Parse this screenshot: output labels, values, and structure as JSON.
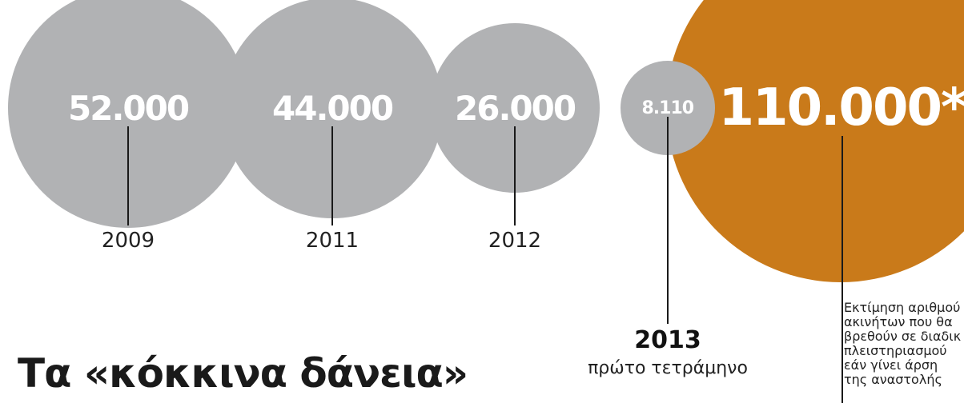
{
  "chart_data": {
    "type": "bubble",
    "title": "Τα «κόκκινα δάνεια»",
    "points": [
      {
        "label": "2009",
        "value": 52000,
        "display": "52.000",
        "color": "#b1b2b4"
      },
      {
        "label": "2011",
        "value": 44000,
        "display": "44.000",
        "color": "#b1b2b4"
      },
      {
        "label": "2012",
        "value": 26000,
        "display": "26.000",
        "color": "#b1b2b4"
      },
      {
        "label": "2013",
        "sublabel": "πρώτο τετράμηνο",
        "value": 8110,
        "display": "8.110",
        "color": "#b1b2b4"
      },
      {
        "label": "",
        "value": 110000,
        "display": "110.000*",
        "color": "#c97a1a",
        "note": [
          "Εκτίμηση αριθμού",
          "ακινήτων που θα",
          "βρεθούν σε διαδικ",
          "πλειστηριασμού",
          "εάν γίνει άρση",
          "της αναστολής"
        ]
      }
    ]
  }
}
